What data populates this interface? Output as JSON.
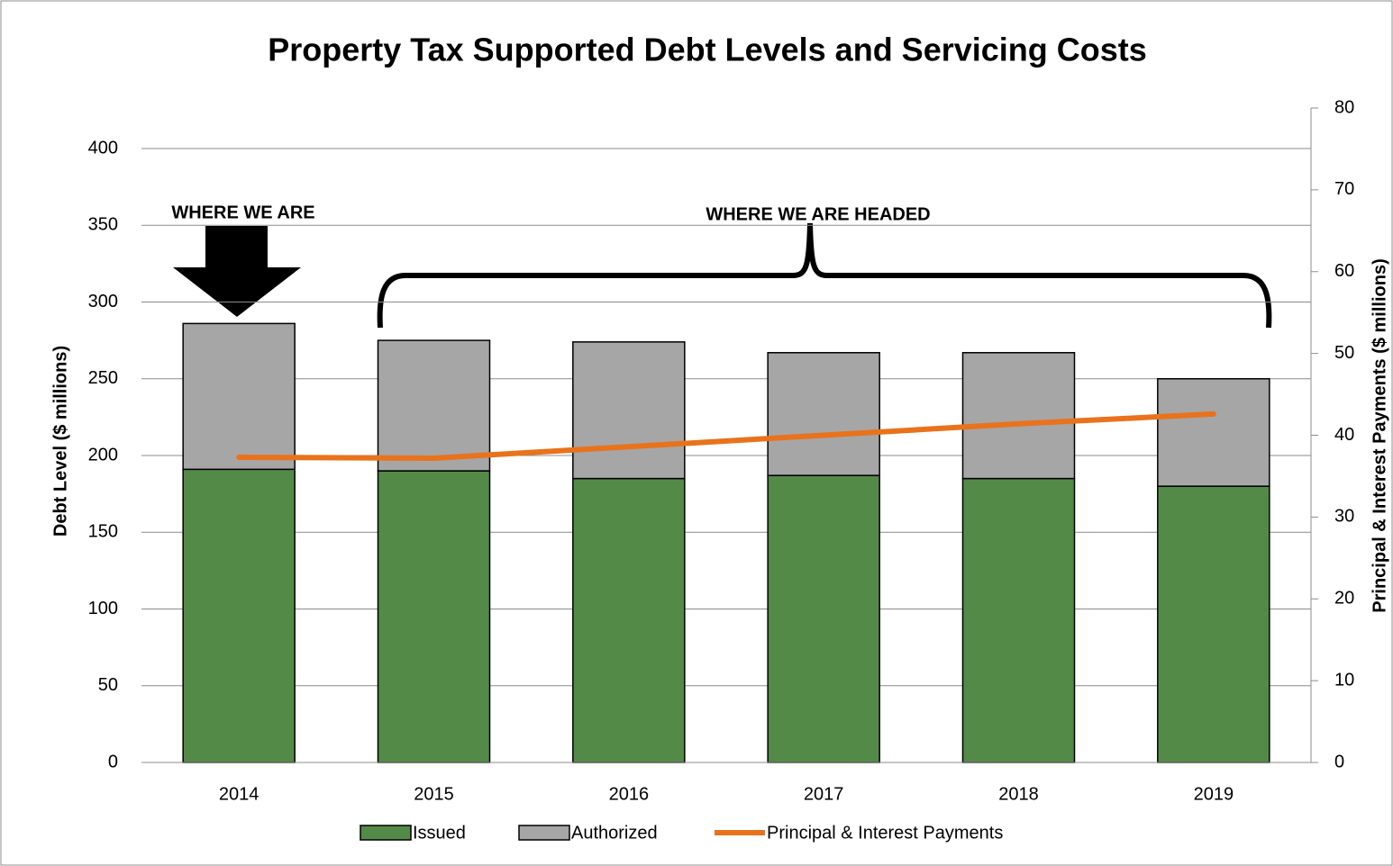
{
  "chart_data": {
    "type": "bar",
    "title": "Property Tax Supported Debt Levels and Servicing Costs",
    "ylabel": "Debt Level ($ millions)",
    "y2label": "Principal & Interest Payments ($ millions)",
    "categories": [
      "2014",
      "2015",
      "2016",
      "2017",
      "2018",
      "2019"
    ],
    "stacked": true,
    "series": [
      {
        "name": "Issued",
        "color": "#548a48",
        "values": [
          191,
          190,
          185,
          187,
          185,
          180
        ]
      },
      {
        "name": "Authorized",
        "color": "#a6a6a6",
        "values": [
          95,
          85,
          89,
          80,
          82,
          70
        ]
      },
      {
        "name": "Principal & Interest Payments",
        "type": "line",
        "axis": "y2",
        "color": "#e8731c",
        "values": [
          37.3,
          37.2,
          38.6,
          40.0,
          41.4,
          42.6
        ]
      }
    ],
    "ylim": [
      0,
      400
    ],
    "yticks": [
      0,
      50,
      100,
      150,
      200,
      250,
      300,
      350,
      400
    ],
    "y2lim": [
      0,
      80
    ],
    "y2ticks": [
      0,
      10,
      20,
      30,
      40,
      50,
      60,
      70,
      80
    ],
    "grid": true,
    "legend": "bottom",
    "annotations": [
      "WHERE WE ARE",
      "WHERE WE ARE HEADED"
    ]
  }
}
